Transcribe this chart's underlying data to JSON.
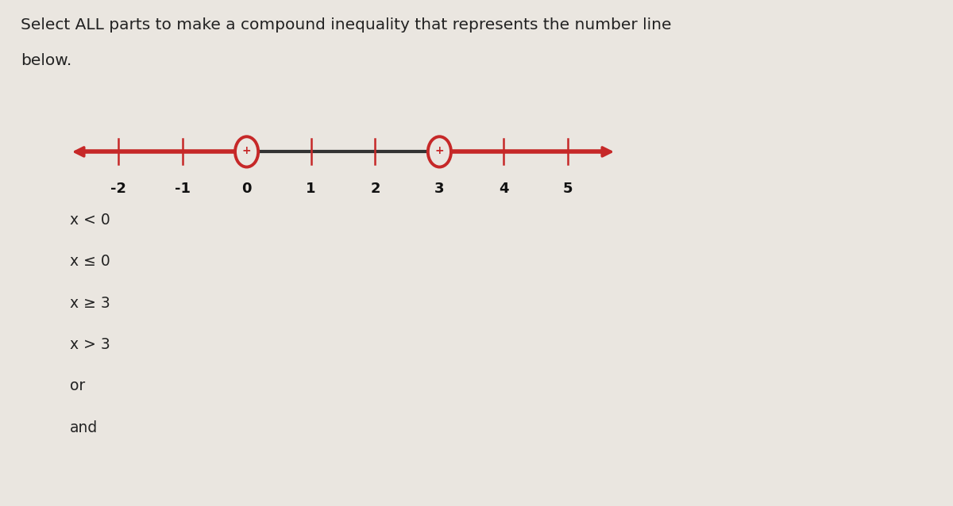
{
  "bg_color": "#eae6e0",
  "title_line1": "Select ALL parts to make a compound inequality that represents the number line",
  "title_line2": "below.",
  "title_fontsize": 14.5,
  "number_line": {
    "ticks": [
      -2,
      -1,
      0,
      1,
      2,
      3,
      4,
      5
    ],
    "open_circles": [
      0,
      3
    ],
    "line_color": "#c62828",
    "middle_color": "#333333",
    "circle_face_color": "#eae6e0",
    "circle_edge_color": "#c62828"
  },
  "checkboxes": [
    {
      "label": "x < 0"
    },
    {
      "label": "x ≤ 0"
    },
    {
      "label": "x ≥ 3"
    },
    {
      "label": "x > 3"
    },
    {
      "label": "or"
    },
    {
      "label": "and"
    }
  ],
  "checkbox_color": "#999999",
  "label_fontsize": 13.5,
  "label_color": "#222222"
}
